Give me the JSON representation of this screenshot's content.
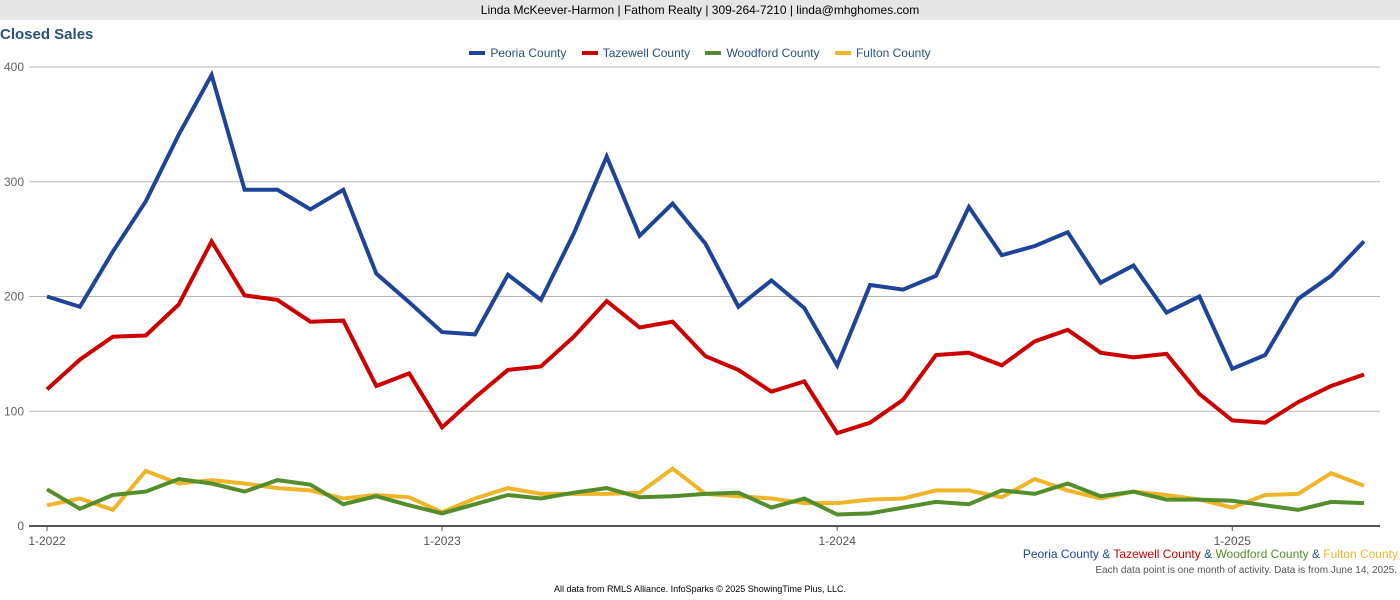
{
  "header": {
    "contact": "Linda McKeever-Harmon | Fathom Realty | 309-264-7210 | linda@mhghomes.com"
  },
  "chart_data": {
    "type": "line",
    "title": "Closed Sales",
    "xlabel": "",
    "ylabel": "",
    "ylim": [
      0,
      400
    ],
    "yticks": [
      "0",
      "100",
      "200",
      "300",
      "400"
    ],
    "xticks": [
      {
        "index": 0,
        "label": "1-2022"
      },
      {
        "index": 12,
        "label": "1-2023"
      },
      {
        "index": 24,
        "label": "1-2024"
      },
      {
        "index": 36,
        "label": "1-2025"
      }
    ],
    "x": [
      "1-2022",
      "2-2022",
      "3-2022",
      "4-2022",
      "5-2022",
      "6-2022",
      "7-2022",
      "8-2022",
      "9-2022",
      "10-2022",
      "11-2022",
      "12-2022",
      "1-2023",
      "2-2023",
      "3-2023",
      "4-2023",
      "5-2023",
      "6-2023",
      "7-2023",
      "8-2023",
      "9-2023",
      "10-2023",
      "11-2023",
      "12-2023",
      "1-2024",
      "2-2024",
      "3-2024",
      "4-2024",
      "5-2024",
      "6-2024",
      "7-2024",
      "8-2024",
      "9-2024",
      "10-2024",
      "11-2024",
      "12-2024",
      "1-2025",
      "2-2025",
      "3-2025",
      "4-2025",
      "5-2025"
    ],
    "grid": true,
    "legend_position": "top-center",
    "series": [
      {
        "name": "Peoria County",
        "color": "#1e449a",
        "values": [
          200,
          191,
          239,
          283,
          341,
          393,
          293,
          293,
          276,
          293,
          220,
          195,
          169,
          167,
          219,
          197,
          255,
          322,
          253,
          281,
          246,
          191,
          214,
          190,
          140,
          210,
          206,
          218,
          278,
          236,
          244,
          256,
          212,
          227,
          186,
          200,
          137,
          149,
          198,
          218,
          248
        ]
      },
      {
        "name": "Tazewell County",
        "color": "#cc0000",
        "values": [
          119,
          145,
          165,
          166,
          193,
          248,
          201,
          197,
          178,
          179,
          122,
          133,
          86,
          112,
          136,
          139,
          165,
          196,
          173,
          178,
          148,
          136,
          117,
          126,
          81,
          90,
          110,
          149,
          151,
          140,
          161,
          171,
          151,
          147,
          150,
          115,
          92,
          90,
          108,
          122,
          132
        ]
      },
      {
        "name": "Woodford County",
        "color": "#548d2b",
        "values": [
          32,
          15,
          27,
          30,
          41,
          37,
          30,
          40,
          36,
          19,
          26,
          18,
          11,
          19,
          27,
          24,
          29,
          33,
          25,
          26,
          28,
          29,
          16,
          24,
          10,
          11,
          16,
          21,
          19,
          31,
          28,
          37,
          26,
          30,
          23,
          23,
          22,
          18,
          14,
          21,
          20
        ]
      },
      {
        "name": "Fulton County",
        "color": "#f0b429",
        "values": [
          18,
          24,
          14,
          48,
          37,
          40,
          37,
          33,
          31,
          24,
          27,
          25,
          12,
          24,
          33,
          28,
          28,
          28,
          29,
          50,
          28,
          26,
          24,
          20,
          20,
          23,
          24,
          31,
          31,
          25,
          41,
          31,
          24,
          30,
          27,
          23,
          16,
          27,
          28,
          46,
          35
        ]
      }
    ]
  },
  "caption": {
    "series_names": [
      "Peoria County",
      "Tazewell County",
      "Woodford County",
      "Fulton County"
    ],
    "separator": " & ",
    "note": "Each data point is one month of activity. Data is from June 14, 2025."
  },
  "footer": {
    "text": "All data from RMLS Alliance. InfoSparks © 2025 ShowingTime Plus, LLC."
  }
}
